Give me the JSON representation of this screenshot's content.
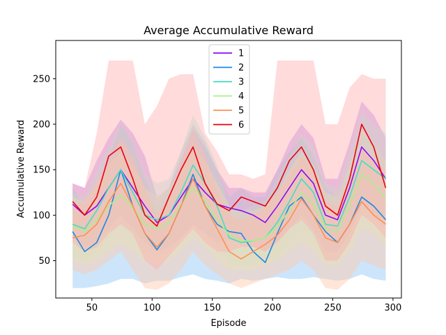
{
  "chart_data": {
    "type": "line",
    "title": "Average Accumulative Reward",
    "xlabel": "Episode",
    "ylabel": "Accumulative Reward",
    "xlim": [
      20,
      307
    ],
    "ylim": [
      9,
      292
    ],
    "xticks": [
      50,
      100,
      150,
      200,
      250,
      300
    ],
    "yticks": [
      50,
      100,
      150,
      200,
      250
    ],
    "grid": false,
    "legend_position": "top-center",
    "series": [
      {
        "name": "1",
        "color": "#8a0cf3",
        "band_color": "#b07cf6",
        "x": [
          34,
          44,
          54,
          64,
          74,
          84,
          94,
          104,
          114,
          124,
          134,
          144,
          154,
          164,
          174,
          184,
          194,
          204,
          214,
          224,
          234,
          244,
          254,
          264,
          274,
          284,
          294
        ],
        "y": [
          112,
          100,
          110,
          130,
          150,
          130,
          110,
          92,
          100,
          120,
          140,
          125,
          112,
          108,
          105,
          100,
          92,
          110,
          130,
          150,
          135,
          100,
          95,
          130,
          175,
          160,
          140
        ],
        "lower": [
          75,
          65,
          70,
          85,
          100,
          85,
          70,
          60,
          65,
          75,
          90,
          80,
          70,
          75,
          70,
          65,
          60,
          70,
          85,
          100,
          85,
          60,
          60,
          80,
          110,
          100,
          90
        ],
        "upper": [
          135,
          130,
          160,
          185,
          205,
          190,
          165,
          120,
          130,
          160,
          195,
          175,
          150,
          130,
          130,
          125,
          125,
          150,
          180,
          200,
          185,
          140,
          140,
          180,
          225,
          210,
          185
        ]
      },
      {
        "name": "2",
        "color": "#1e88e5",
        "band_color": "#8ec5f3",
        "x": [
          34,
          44,
          54,
          64,
          74,
          84,
          94,
          104,
          114,
          124,
          134,
          144,
          154,
          164,
          174,
          184,
          194,
          204,
          214,
          224,
          234,
          244,
          254,
          264,
          274,
          284,
          294
        ],
        "y": [
          82,
          60,
          70,
          100,
          150,
          110,
          80,
          62,
          80,
          110,
          145,
          110,
          90,
          82,
          80,
          60,
          48,
          80,
          110,
          120,
          100,
          82,
          70,
          90,
          120,
          110,
          95
        ],
        "lower": [
          20,
          20,
          22,
          25,
          30,
          30,
          25,
          28,
          28,
          32,
          35,
          30,
          28,
          25,
          30,
          28,
          30,
          32,
          30,
          30,
          32,
          30,
          28,
          30,
          35,
          30,
          28
        ],
        "upper": [
          130,
          110,
          130,
          160,
          200,
          180,
          140,
          110,
          130,
          170,
          200,
          180,
          150,
          120,
          130,
          120,
          120,
          150,
          170,
          185,
          165,
          130,
          120,
          150,
          190,
          180,
          160
        ]
      },
      {
        "name": "3",
        "color": "#40e0c0",
        "band_color": "#a6f0de",
        "x": [
          34,
          44,
          54,
          64,
          74,
          84,
          94,
          104,
          114,
          124,
          134,
          144,
          154,
          164,
          174,
          184,
          194,
          204,
          214,
          224,
          234,
          244,
          254,
          264,
          274,
          284,
          294
        ],
        "y": [
          90,
          85,
          105,
          130,
          150,
          125,
          100,
          95,
          100,
          125,
          155,
          135,
          110,
          75,
          70,
          72,
          75,
          92,
          115,
          140,
          125,
          90,
          88,
          120,
          160,
          150,
          140
        ],
        "lower": [
          55,
          50,
          60,
          75,
          90,
          75,
          60,
          55,
          60,
          75,
          95,
          80,
          65,
          45,
          45,
          45,
          50,
          55,
          70,
          85,
          75,
          50,
          50,
          70,
          100,
          95,
          85
        ],
        "upper": [
          125,
          120,
          150,
          175,
          200,
          180,
          145,
          135,
          140,
          170,
          210,
          185,
          155,
          110,
          105,
          110,
          115,
          140,
          165,
          190,
          175,
          135,
          130,
          170,
          215,
          200,
          190
        ]
      },
      {
        "name": "4",
        "color": "#a8f08a",
        "band_color": "#d4f7c4",
        "x": [
          34,
          44,
          54,
          64,
          74,
          84,
          94,
          104,
          114,
          124,
          134,
          144,
          154,
          164,
          174,
          184,
          194,
          204,
          214,
          224,
          234,
          244,
          254,
          264,
          274,
          284,
          294
        ],
        "y": [
          88,
          82,
          95,
          110,
          122,
          108,
          90,
          85,
          92,
          112,
          130,
          115,
          95,
          78,
          72,
          72,
          75,
          88,
          105,
          125,
          112,
          85,
          82,
          110,
          145,
          135,
          118
        ],
        "lower": [
          50,
          45,
          50,
          60,
          70,
          60,
          50,
          45,
          50,
          60,
          75,
          65,
          50,
          40,
          40,
          40,
          45,
          50,
          60,
          70,
          60,
          45,
          45,
          60,
          85,
          80,
          65
        ],
        "upper": [
          120,
          115,
          135,
          155,
          170,
          155,
          130,
          120,
          130,
          150,
          175,
          160,
          135,
          110,
          105,
          105,
          110,
          125,
          150,
          170,
          155,
          125,
          120,
          155,
          195,
          180,
          160
        ]
      },
      {
        "name": "5",
        "color": "#ff9050",
        "band_color": "#ffc8a8",
        "x": [
          34,
          44,
          54,
          64,
          74,
          84,
          94,
          104,
          114,
          124,
          134,
          144,
          154,
          164,
          174,
          184,
          194,
          204,
          214,
          224,
          234,
          244,
          254,
          264,
          274,
          284,
          294
        ],
        "y": [
          75,
          78,
          90,
          115,
          135,
          110,
          80,
          65,
          80,
          110,
          140,
          110,
          85,
          60,
          52,
          60,
          68,
          78,
          95,
          118,
          100,
          75,
          70,
          90,
          115,
          100,
          90
        ],
        "lower": [
          40,
          35,
          40,
          50,
          60,
          40,
          20,
          18,
          25,
          40,
          60,
          45,
          35,
          25,
          20,
          25,
          30,
          35,
          40,
          50,
          40,
          20,
          18,
          30,
          50,
          45,
          40
        ],
        "upper": [
          110,
          115,
          135,
          160,
          185,
          165,
          130,
          100,
          120,
          160,
          195,
          165,
          130,
          100,
          95,
          100,
          110,
          125,
          145,
          165,
          150,
          115,
          110,
          140,
          175,
          160,
          150
        ]
      },
      {
        "name": "6",
        "color": "#e8000b",
        "band_color": "#ffb0b0",
        "x": [
          34,
          44,
          54,
          64,
          74,
          84,
          94,
          104,
          114,
          124,
          134,
          144,
          154,
          164,
          174,
          184,
          194,
          204,
          214,
          224,
          234,
          244,
          254,
          264,
          274,
          284,
          294
        ],
        "y": [
          115,
          100,
          120,
          165,
          175,
          140,
          100,
          88,
          120,
          150,
          175,
          135,
          112,
          105,
          120,
          115,
          110,
          130,
          160,
          175,
          150,
          110,
          100,
          140,
          200,
          175,
          130
        ],
        "lower": [
          70,
          60,
          65,
          80,
          90,
          80,
          50,
          40,
          55,
          70,
          85,
          70,
          60,
          60,
          65,
          65,
          60,
          70,
          85,
          95,
          80,
          50,
          50,
          70,
          100,
          90,
          75
        ],
        "upper": [
          135,
          130,
          190,
          270,
          270,
          270,
          200,
          220,
          250,
          255,
          255,
          190,
          170,
          145,
          145,
          140,
          145,
          270,
          270,
          270,
          270,
          200,
          200,
          240,
          255,
          250,
          250
        ]
      }
    ]
  }
}
